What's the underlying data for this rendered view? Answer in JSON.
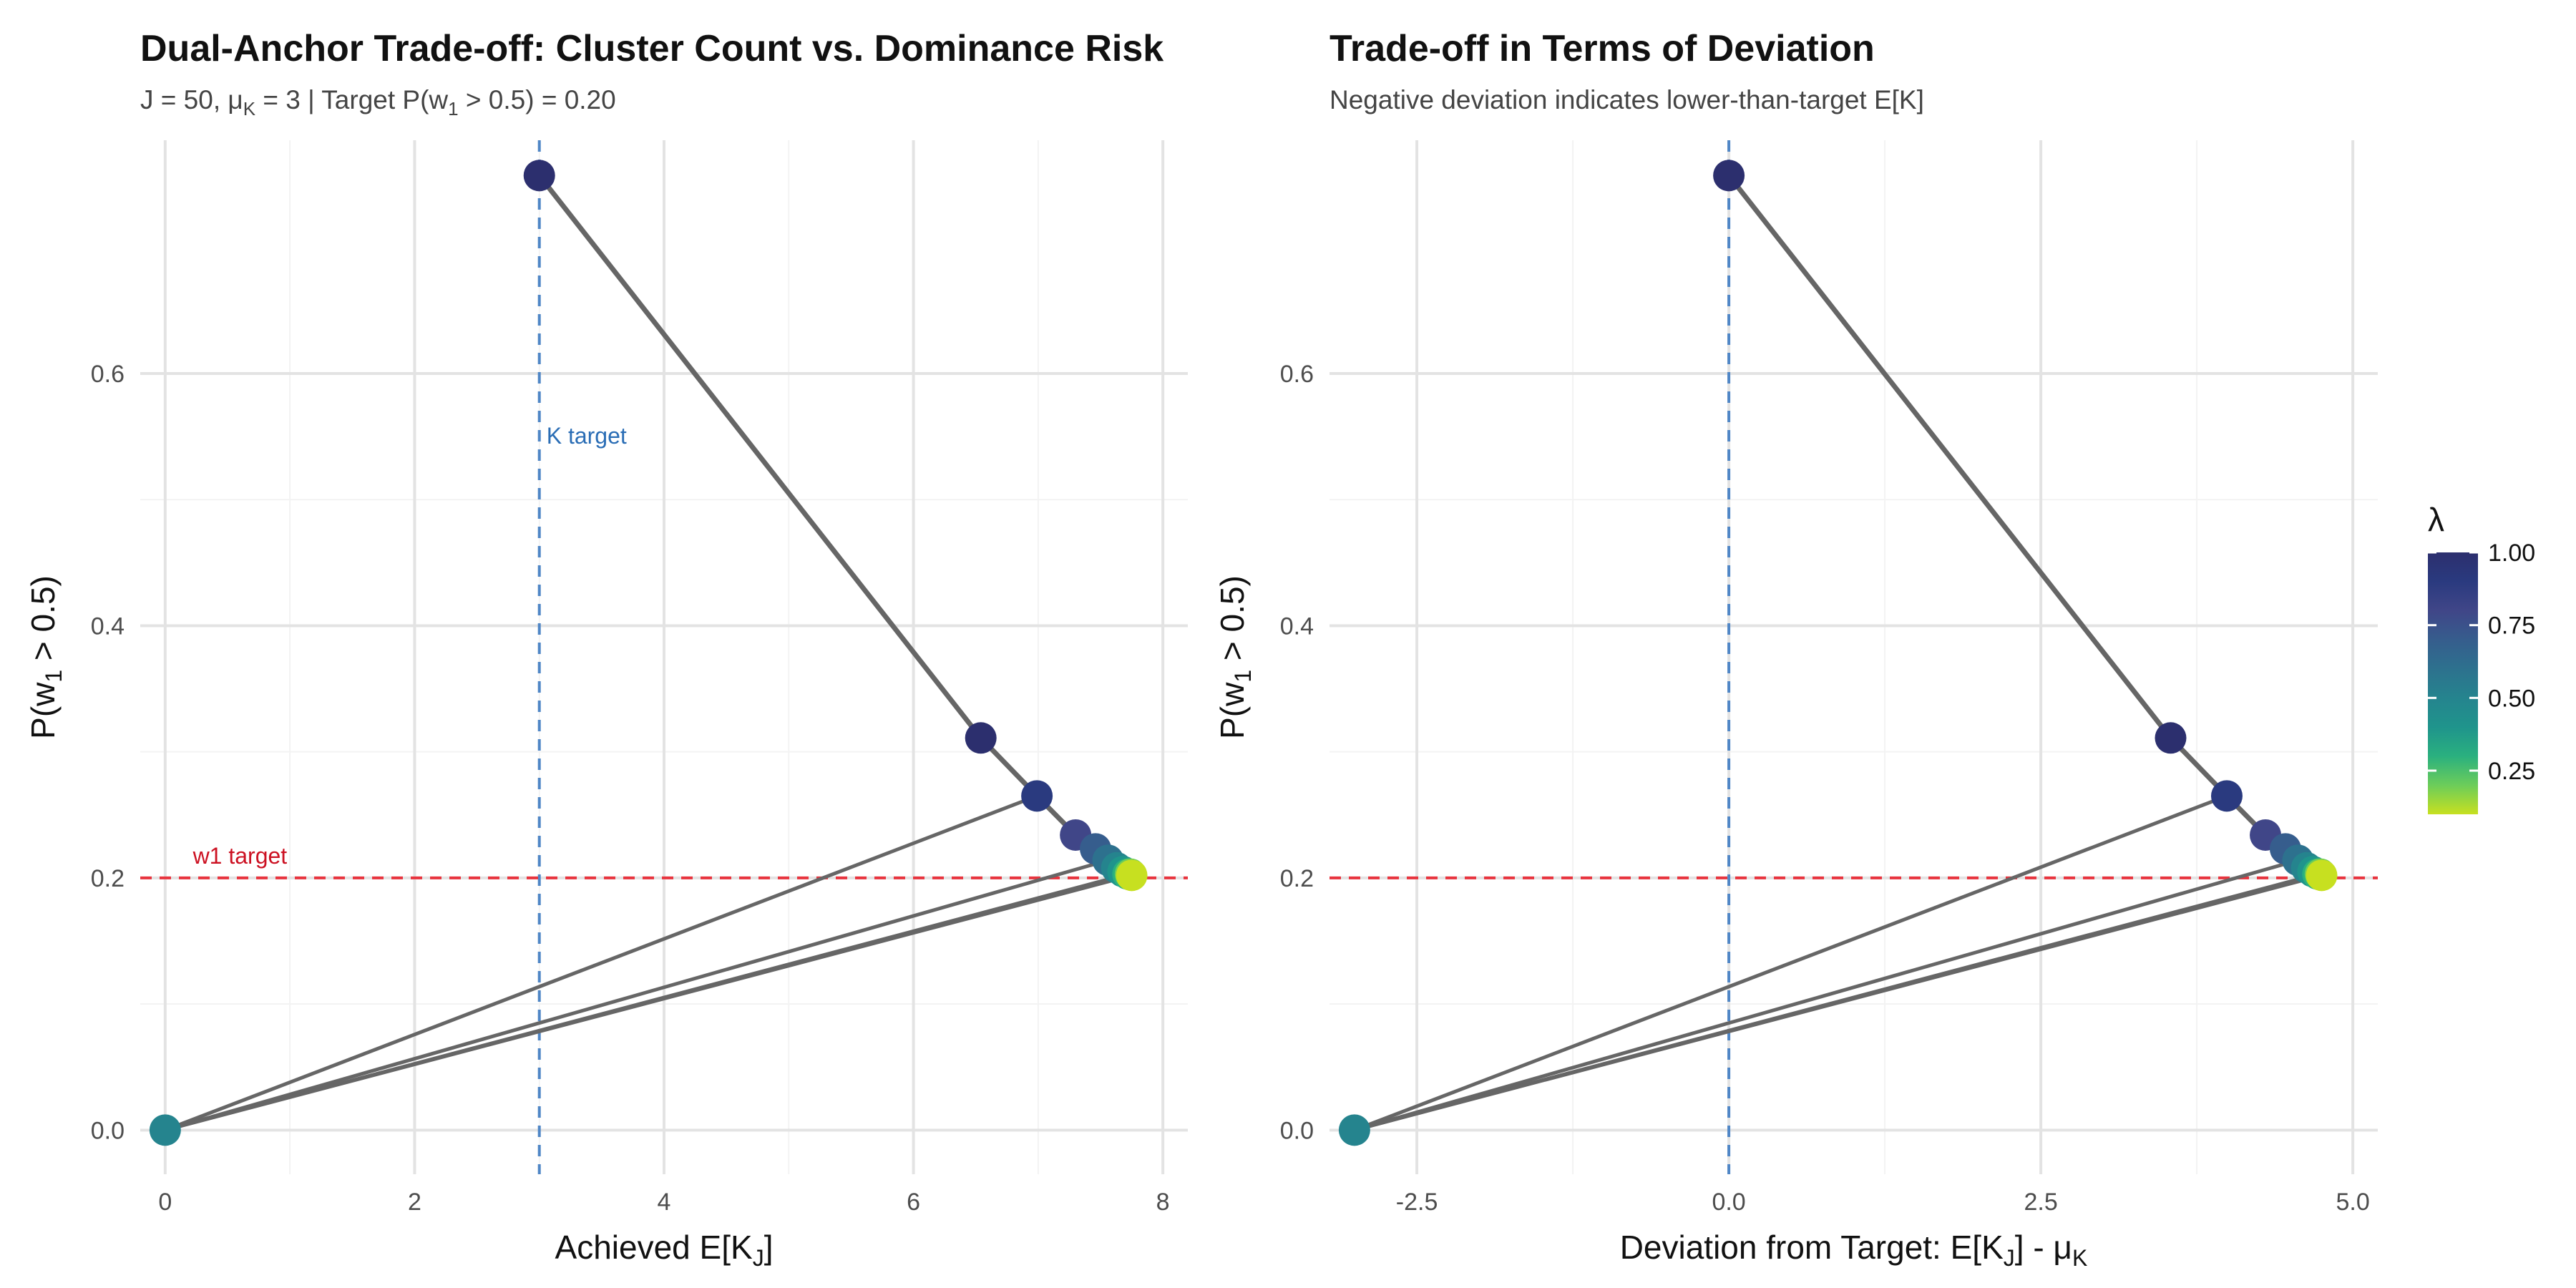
{
  "chart_data": [
    {
      "type": "scatter",
      "title": "Dual-Anchor Trade-off: Cluster Count vs. Dominance Risk",
      "subtitle_pre": "J = 50, μ",
      "subtitle_sub": "K",
      "subtitle_mid": " = 3 | Target P(w",
      "subtitle_sub2": "1",
      "subtitle_post": " > 0.5) = 0.20",
      "xlabel_pre": "Achieved E[K",
      "xlabel_sub": "J",
      "xlabel_post": "]",
      "ylabel_pre": "P(w",
      "ylabel_sub": "1",
      "ylabel_post": " > 0.5)",
      "xlim": [
        -0.2,
        8.2
      ],
      "ylim": [
        -0.035,
        0.785
      ],
      "xticks": [
        0,
        2,
        4,
        6,
        8
      ],
      "xtick_labels": [
        "0",
        "2",
        "4",
        "6",
        "8"
      ],
      "yticks": [
        0.0,
        0.2,
        0.4,
        0.6
      ],
      "ytick_labels": [
        "0.0",
        "0.2",
        "0.4",
        "0.6"
      ],
      "vline": {
        "x": 3,
        "label": "K target",
        "label_y": 0.55,
        "color": "#4f86c6"
      },
      "hline": {
        "y": 0.2,
        "label": "w1 target",
        "label_x": 0.05,
        "color": "#e8343e"
      },
      "points": [
        {
          "x": 3.0,
          "y": 0.757,
          "lambda": 1.0
        },
        {
          "x": 6.54,
          "y": 0.311,
          "lambda": 0.95
        },
        {
          "x": 6.99,
          "y": 0.265,
          "lambda": 0.9
        },
        {
          "x": 7.3,
          "y": 0.234,
          "lambda": 0.8
        },
        {
          "x": 7.46,
          "y": 0.223,
          "lambda": 0.7
        },
        {
          "x": 7.56,
          "y": 0.214,
          "lambda": 0.6
        },
        {
          "x": 7.63,
          "y": 0.208,
          "lambda": 0.5
        },
        {
          "x": 7.68,
          "y": 0.205,
          "lambda": 0.4
        },
        {
          "x": 7.72,
          "y": 0.203,
          "lambda": 0.3
        },
        {
          "x": 7.74,
          "y": 0.203,
          "lambda": 0.2
        },
        {
          "x": 7.75,
          "y": 0.202,
          "lambda": 0.1
        },
        {
          "x": 0.0,
          "y": 0.0,
          "lambda": 0.5
        }
      ]
    },
    {
      "type": "scatter",
      "title": "Trade-off in Terms of Deviation",
      "subtitle": "Negative deviation indicates lower-than-target E[K]",
      "xlabel_pre": "Deviation from Target: E[K",
      "xlabel_sub": "J",
      "xlabel_mid": "] - μ",
      "xlabel_sub2": "K",
      "ylabel_pre": "P(w",
      "ylabel_sub": "1",
      "ylabel_post": " > 0.5)",
      "xlim": [
        -3.2,
        5.2
      ],
      "ylim": [
        -0.035,
        0.785
      ],
      "xticks": [
        -2.5,
        0,
        2.5,
        5.0
      ],
      "xtick_labels": [
        "-2.5",
        "0.0",
        "2.5",
        "5.0"
      ],
      "yticks": [
        0.0,
        0.2,
        0.4,
        0.6
      ],
      "ytick_labels": [
        "0.0",
        "0.2",
        "0.4",
        "0.6"
      ],
      "vline": {
        "x": 0,
        "color": "#4f86c6"
      },
      "hline": {
        "y": 0.2,
        "color": "#e8343e"
      },
      "points": [
        {
          "x": 0.0,
          "y": 0.757,
          "lambda": 1.0
        },
        {
          "x": 3.54,
          "y": 0.311,
          "lambda": 0.95
        },
        {
          "x": 3.99,
          "y": 0.265,
          "lambda": 0.9
        },
        {
          "x": 4.3,
          "y": 0.234,
          "lambda": 0.8
        },
        {
          "x": 4.46,
          "y": 0.223,
          "lambda": 0.7
        },
        {
          "x": 4.56,
          "y": 0.214,
          "lambda": 0.6
        },
        {
          "x": 4.63,
          "y": 0.208,
          "lambda": 0.5
        },
        {
          "x": 4.68,
          "y": 0.205,
          "lambda": 0.4
        },
        {
          "x": 4.72,
          "y": 0.203,
          "lambda": 0.3
        },
        {
          "x": 4.74,
          "y": 0.203,
          "lambda": 0.2
        },
        {
          "x": 4.75,
          "y": 0.202,
          "lambda": 0.1
        },
        {
          "x": -3.0,
          "y": 0.0,
          "lambda": 0.5
        }
      ]
    }
  ],
  "legend": {
    "title": "λ",
    "ticks": [
      1.0,
      0.75,
      0.5,
      0.25
    ],
    "tick_labels": [
      "1.00",
      "0.75",
      "0.50",
      "0.25"
    ],
    "range": [
      0.1,
      1.0
    ],
    "colors": [
      "#c7e020",
      "#6ccd5a",
      "#2ab07f",
      "#1f948c",
      "#25848e",
      "#2d718e",
      "#365d8d",
      "#404688",
      "#2a3a7f",
      "#2c2f6e"
    ]
  },
  "colors": {
    "line": "#666666",
    "k_target": "#4f86c6",
    "w1_target": "#e8343e",
    "k_label": "#2a6db5",
    "w1_label": "#cc1122"
  }
}
